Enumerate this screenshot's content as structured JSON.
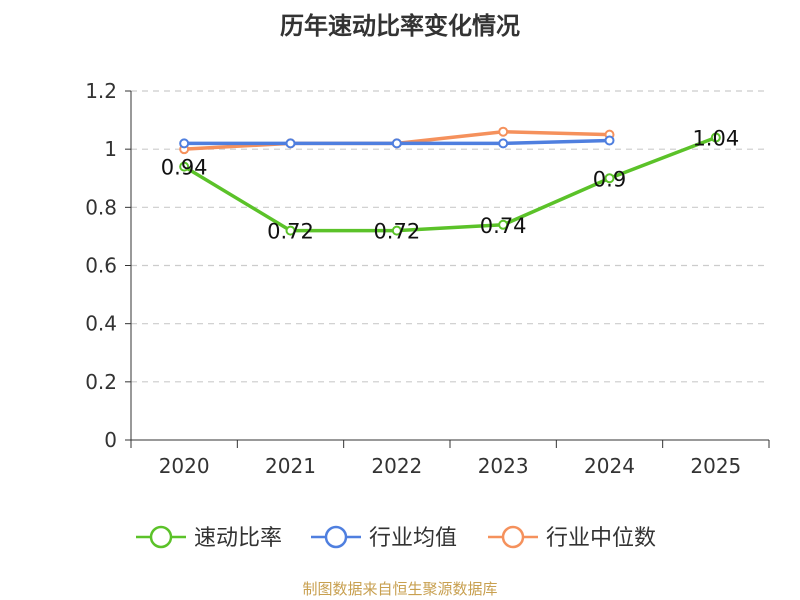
{
  "chart_data": {
    "type": "line",
    "title": "历年速动比率变化情况",
    "categories": [
      "2020",
      "2021",
      "2022",
      "2023",
      "2024",
      "2025"
    ],
    "ylim": [
      0,
      1.2
    ],
    "yticks": [
      "0",
      "0.2",
      "0.4",
      "0.6",
      "0.8",
      "1",
      "1.2"
    ],
    "grid": true,
    "legend_position": "bottom",
    "series": [
      {
        "name": "速动比率",
        "color": "#5bc229",
        "values": [
          0.94,
          0.72,
          0.72,
          0.74,
          0.9,
          1.04
        ],
        "labels": [
          "0.94",
          "0.72",
          "0.72",
          "0.74",
          "0.9",
          "1.04"
        ]
      },
      {
        "name": "行业均值",
        "color": "#4f7fdf",
        "values": [
          1.02,
          1.02,
          1.02,
          1.02,
          1.03,
          null
        ]
      },
      {
        "name": "行业中位数",
        "color": "#f5915c",
        "values": [
          1.0,
          1.02,
          1.02,
          1.06,
          1.05,
          null
        ]
      }
    ]
  },
  "footer": {
    "source": "制图数据来自恒生聚源数据库"
  }
}
